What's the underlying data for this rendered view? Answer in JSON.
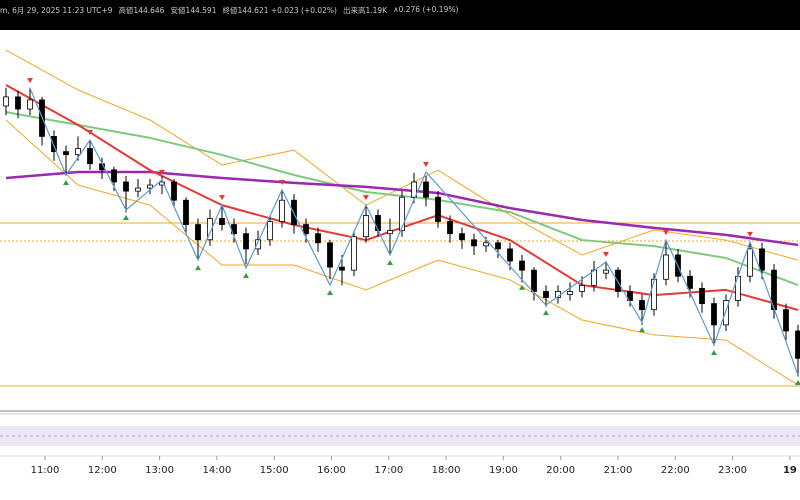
{
  "header": {
    "time": "m, 6月 29, 2025 11:23 UTC+9",
    "high": "高値144.646",
    "low": "安値144.591",
    "close": "終値144.621 +0.023 (+0.02%)",
    "volume": "出来高1.19K",
    "range": "∧0.276 (+0.19%)"
  },
  "chart_data": {
    "type": "candlestick",
    "ylim": [
      144.5,
      145.75
    ],
    "x_labels": [
      "11:00",
      "12:00",
      "13:00",
      "14:00",
      "15:00",
      "16:00",
      "17:00",
      "18:00",
      "19:00",
      "20:00",
      "21:00",
      "22:00",
      "23:00",
      "19"
    ],
    "up_color": "#ffffff",
    "down_color": "#000000",
    "candles": [
      [
        145.5,
        145.56,
        145.47,
        145.53
      ],
      [
        145.53,
        145.55,
        145.46,
        145.49
      ],
      [
        145.49,
        145.56,
        145.47,
        145.52
      ],
      [
        145.52,
        145.53,
        145.37,
        145.4
      ],
      [
        145.4,
        145.42,
        145.32,
        145.35
      ],
      [
        145.35,
        145.37,
        145.27,
        145.34
      ],
      [
        145.34,
        145.4,
        145.32,
        145.36
      ],
      [
        145.36,
        145.39,
        145.29,
        145.31
      ],
      [
        145.31,
        145.33,
        145.26,
        145.29
      ],
      [
        145.29,
        145.3,
        145.22,
        145.25
      ],
      [
        145.25,
        145.27,
        145.15,
        145.22
      ],
      [
        145.22,
        145.26,
        145.2,
        145.23
      ],
      [
        145.23,
        145.26,
        145.21,
        145.24
      ],
      [
        145.24,
        145.27,
        145.21,
        145.25
      ],
      [
        145.25,
        145.26,
        145.17,
        145.19
      ],
      [
        145.19,
        145.2,
        145.08,
        145.11
      ],
      [
        145.11,
        145.13,
        145.0,
        145.06
      ],
      [
        145.06,
        145.16,
        145.04,
        145.13
      ],
      [
        145.13,
        145.17,
        145.09,
        145.11
      ],
      [
        145.11,
        145.13,
        145.05,
        145.08
      ],
      [
        145.08,
        145.1,
        144.98,
        145.03
      ],
      [
        145.03,
        145.09,
        145.01,
        145.06
      ],
      [
        145.06,
        145.14,
        145.04,
        145.12
      ],
      [
        145.12,
        145.22,
        145.1,
        145.19
      ],
      [
        145.19,
        145.21,
        145.08,
        145.11
      ],
      [
        145.11,
        145.13,
        145.05,
        145.08
      ],
      [
        145.08,
        145.1,
        145.02,
        145.05
      ],
      [
        145.05,
        145.06,
        144.93,
        144.97
      ],
      [
        144.97,
        145.01,
        144.91,
        144.96
      ],
      [
        144.96,
        145.09,
        144.94,
        145.07
      ],
      [
        145.07,
        145.17,
        145.05,
        145.14
      ],
      [
        145.14,
        145.16,
        145.07,
        145.09
      ],
      [
        145.08,
        145.13,
        145.01,
        145.09
      ],
      [
        145.09,
        145.22,
        145.07,
        145.2
      ],
      [
        145.2,
        145.28,
        145.18,
        145.25
      ],
      [
        145.25,
        145.27,
        145.17,
        145.2
      ],
      [
        145.2,
        145.22,
        145.1,
        145.12
      ],
      [
        145.12,
        145.14,
        145.05,
        145.08
      ],
      [
        145.08,
        145.1,
        145.03,
        145.06
      ],
      [
        145.06,
        145.08,
        145.01,
        145.04
      ],
      [
        145.04,
        145.07,
        145.02,
        145.05
      ],
      [
        145.05,
        145.06,
        145.0,
        145.03
      ],
      [
        145.03,
        145.05,
        144.96,
        144.99
      ],
      [
        144.99,
        145.01,
        144.92,
        144.96
      ],
      [
        144.96,
        144.97,
        144.86,
        144.89
      ],
      [
        144.89,
        144.91,
        144.84,
        144.87
      ],
      [
        144.87,
        144.91,
        144.85,
        144.89
      ],
      [
        144.88,
        144.92,
        144.86,
        144.89
      ],
      [
        144.89,
        144.94,
        144.87,
        144.91
      ],
      [
        144.91,
        144.99,
        144.89,
        144.96
      ],
      [
        144.95,
        144.99,
        144.93,
        144.96
      ],
      [
        144.96,
        144.97,
        144.87,
        144.89
      ],
      [
        144.89,
        144.91,
        144.84,
        144.86
      ],
      [
        144.86,
        144.88,
        144.78,
        144.83
      ],
      [
        144.83,
        144.95,
        144.81,
        144.93
      ],
      [
        144.93,
        145.06,
        144.91,
        145.01
      ],
      [
        145.01,
        145.03,
        144.92,
        144.94
      ],
      [
        144.94,
        144.96,
        144.87,
        144.9
      ],
      [
        144.9,
        144.92,
        144.82,
        144.85
      ],
      [
        144.85,
        144.87,
        144.71,
        144.78
      ],
      [
        144.78,
        144.88,
        144.76,
        144.86
      ],
      [
        144.86,
        144.97,
        144.84,
        144.94
      ],
      [
        144.94,
        145.05,
        144.92,
        145.03
      ],
      [
        145.03,
        145.05,
        144.93,
        144.96
      ],
      [
        144.96,
        144.98,
        144.8,
        144.83
      ],
      [
        144.83,
        144.85,
        144.73,
        144.76
      ],
      [
        144.76,
        144.78,
        144.61,
        144.67
      ]
    ],
    "series": [
      {
        "color": "#f5a623",
        "x": [
          0,
          6,
          12,
          18,
          24,
          30,
          36,
          42,
          48,
          54,
          60,
          66
        ],
        "values": [
          145.684,
          145.553,
          145.454,
          145.306,
          145.355,
          145.174,
          145.289,
          145.141,
          145.01,
          145.092,
          145.059,
          144.993
        ]
      },
      {
        "color": "#f5a623",
        "x": [
          0,
          6,
          12,
          18,
          24,
          30,
          36,
          42,
          48,
          54,
          60,
          66
        ],
        "values": [
          145.454,
          145.24,
          145.174,
          144.977,
          144.977,
          144.895,
          144.993,
          144.928,
          144.796,
          144.747,
          144.73,
          144.582
        ]
      },
      {
        "color": "#7fc97f",
        "x": [
          0,
          6,
          12,
          18,
          24,
          30,
          36,
          42,
          48,
          54,
          60,
          66
        ],
        "values": [
          145.48,
          145.438,
          145.395,
          145.339,
          145.273,
          145.217,
          145.191,
          145.151,
          145.059,
          145.039,
          145.0,
          144.911
        ]
      },
      {
        "color": "#9c27b0",
        "x": [
          0,
          6,
          12,
          18,
          24,
          30,
          36,
          42,
          48,
          54,
          60,
          66
        ],
        "values": [
          145.263,
          145.283,
          145.283,
          145.263,
          145.247,
          145.234,
          145.214,
          145.164,
          145.125,
          145.099,
          145.076,
          145.043
        ]
      },
      {
        "color": "#e53935",
        "x": [
          0,
          6,
          12,
          18,
          24,
          30,
          36,
          42,
          48,
          54,
          60,
          66
        ],
        "values": [
          145.569,
          145.438,
          145.289,
          145.174,
          145.109,
          145.059,
          145.141,
          145.059,
          144.911,
          144.878,
          144.895,
          144.829
        ]
      }
    ],
    "zigzag": {
      "color": "#5b9bd5",
      "peak_color": "#e53935",
      "trough_color": "#2e9e48",
      "x": [
        2,
        5,
        7,
        10,
        13,
        16,
        18,
        20,
        23,
        27,
        30,
        32,
        35,
        43,
        45,
        50,
        53,
        55,
        59,
        62,
        66
      ],
      "values": [
        145.559,
        145.273,
        145.388,
        145.158,
        145.257,
        144.993,
        145.174,
        144.967,
        145.224,
        144.911,
        145.174,
        145.01,
        145.283,
        144.928,
        144.845,
        144.987,
        144.789,
        145.059,
        144.714,
        145.053,
        144.615
      ]
    },
    "levels": [
      {
        "value": 145.115,
        "color": "#f5a623",
        "style": "solid"
      },
      {
        "value": 145.056,
        "color": "#f5a623",
        "style": "dotted"
      },
      {
        "value": 144.579,
        "color": "#f5a623",
        "style": "solid"
      }
    ]
  }
}
